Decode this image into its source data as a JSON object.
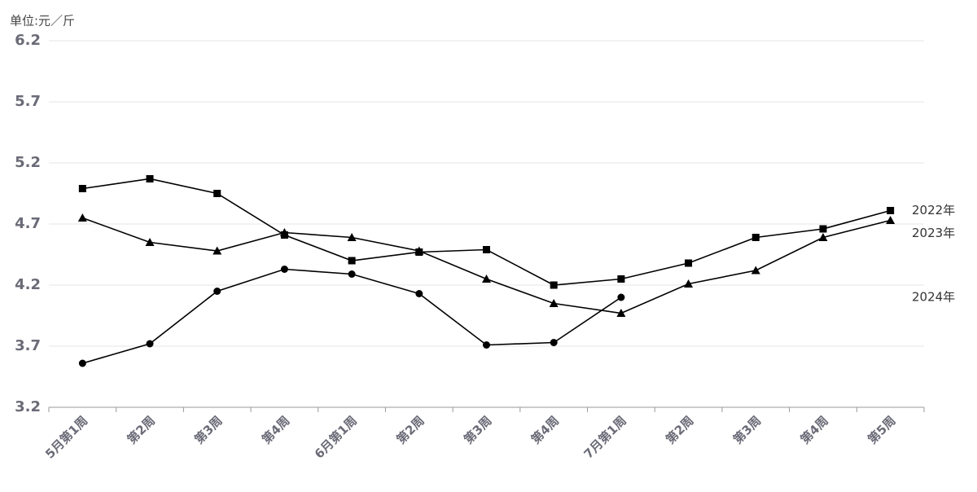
{
  "chart_data": {
    "type": "line",
    "y_label": "单位:元／斤",
    "categories": [
      "5月第1周",
      "第2周",
      "第3周",
      "第4周",
      "6月第1周",
      "第2周",
      "第3周",
      "第4周",
      "7月第1周",
      "第2周",
      "第3周",
      "第4周",
      "第5周"
    ],
    "series": [
      {
        "name": "2022年",
        "color": "#000000",
        "marker": "square",
        "values": [
          4.99,
          5.07,
          4.95,
          4.61,
          4.4,
          4.47,
          4.49,
          4.2,
          4.25,
          4.38,
          4.59,
          4.66,
          4.81
        ]
      },
      {
        "name": "2023年",
        "color": "#000000",
        "marker": "triangle",
        "values": [
          4.75,
          4.55,
          4.48,
          4.63,
          4.59,
          4.48,
          4.25,
          4.05,
          3.97,
          4.21,
          4.32,
          4.59,
          4.73
        ]
      },
      {
        "name": "2024年",
        "color": "#000000",
        "marker": "circle",
        "values": [
          3.56,
          3.72,
          4.15,
          4.33,
          4.29,
          4.13,
          3.71,
          3.73,
          4.1,
          null,
          null,
          null,
          null
        ]
      }
    ],
    "ylim": [
      3.2,
      6.2
    ],
    "yticks": [
      3.2,
      3.7,
      4.2,
      4.7,
      5.2,
      5.7,
      6.2
    ],
    "grid": true
  }
}
